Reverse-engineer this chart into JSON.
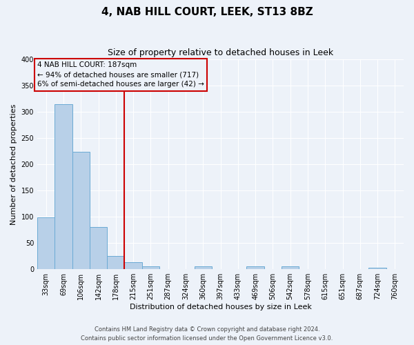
{
  "title": "4, NAB HILL COURT, LEEK, ST13 8BZ",
  "subtitle": "Size of property relative to detached houses in Leek",
  "xlabel": "Distribution of detached houses by size in Leek",
  "ylabel": "Number of detached properties",
  "bar_labels": [
    "33sqm",
    "69sqm",
    "106sqm",
    "142sqm",
    "178sqm",
    "215sqm",
    "251sqm",
    "287sqm",
    "324sqm",
    "360sqm",
    "397sqm",
    "433sqm",
    "469sqm",
    "506sqm",
    "542sqm",
    "578sqm",
    "615sqm",
    "651sqm",
    "687sqm",
    "724sqm",
    "760sqm"
  ],
  "bar_values": [
    99,
    314,
    224,
    81,
    25,
    13,
    5,
    0,
    0,
    5,
    0,
    0,
    5,
    0,
    5,
    0,
    0,
    0,
    0,
    3,
    0
  ],
  "bar_color": "#b8d0e8",
  "bar_edge_color": "#6aaad4",
  "vline_bin": 4,
  "vline_label": "178sqm",
  "vline_color": "#cc0000",
  "annotation_line1": "4 NAB HILL COURT: 187sqm",
  "annotation_line2": "← 94% of detached houses are smaller (717)",
  "annotation_line3": "6% of semi-detached houses are larger (42) →",
  "annotation_box_edge_color": "#cc0000",
  "ylim": [
    0,
    400
  ],
  "yticks": [
    0,
    50,
    100,
    150,
    200,
    250,
    300,
    350,
    400
  ],
  "footer_line1": "Contains HM Land Registry data © Crown copyright and database right 2024.",
  "footer_line2": "Contains public sector information licensed under the Open Government Licence v3.0.",
  "bg_color": "#edf2f9",
  "grid_color": "#ffffff",
  "title_fontsize": 11,
  "subtitle_fontsize": 9,
  "xlabel_fontsize": 8,
  "ylabel_fontsize": 8,
  "tick_fontsize": 7,
  "footer_fontsize": 6
}
